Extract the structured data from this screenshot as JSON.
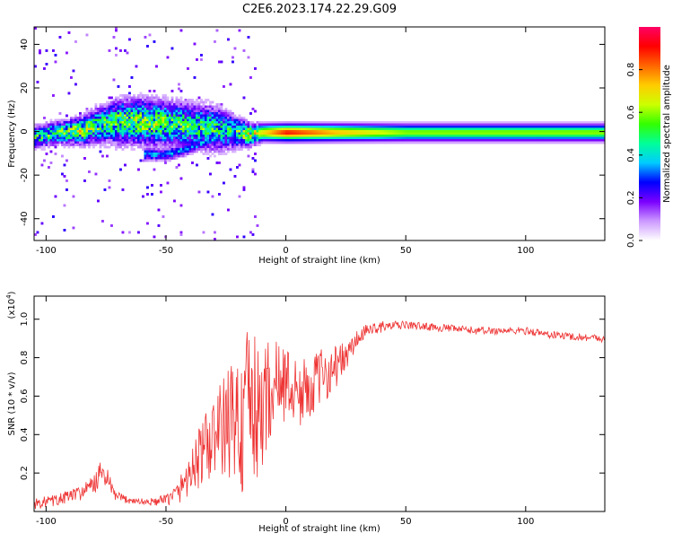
{
  "figure": {
    "title": "C2E6.2023.174.22.29.G09"
  },
  "chart_data": [
    {
      "type": "heatmap",
      "xlabel": "Height of straight line (km)",
      "ylabel": "Frequency (Hz)",
      "xlim": [
        -105,
        133
      ],
      "ylim": [
        -50,
        48
      ],
      "x_ticks": [
        -100,
        -50,
        0,
        50,
        100
      ],
      "x_tick_labels": [
        "-100",
        "-50",
        "0",
        "50",
        "100"
      ],
      "y_ticks": [
        -40,
        -20,
        0,
        20,
        40
      ],
      "y_tick_labels": [
        "-40",
        "-20",
        "0",
        "20",
        "40"
      ],
      "colorbar": {
        "label": "Normalized spectral amplitude",
        "range": [
          0,
          1
        ],
        "ticks": [
          0.0,
          0.2,
          0.4,
          0.6,
          0.8
        ],
        "tick_labels": [
          "0.0",
          "0.2",
          "0.4",
          "0.6",
          "0.8"
        ],
        "colormap": [
          "#ffffff",
          "#cc99ff",
          "#7a00ff",
          "#0000ff",
          "#00ccff",
          "#00ff99",
          "#33ff00",
          "#ccff00",
          "#ffcc00",
          "#ff6600",
          "#ff0000",
          "#ff0066"
        ]
      },
      "ridge": {
        "x": [
          -105,
          -95,
          -85,
          -80,
          -75,
          -70,
          -60,
          -50,
          -40,
          -30,
          -25,
          -20,
          -15,
          -10,
          0,
          20,
          50,
          100,
          133
        ],
        "center_hz": [
          -2,
          0,
          1,
          3,
          4,
          5,
          5,
          4,
          3,
          2,
          1,
          0,
          -1,
          0,
          0,
          0,
          0,
          0,
          0
        ],
        "half_width_hz": [
          4,
          4,
          5,
          6,
          7,
          8,
          8,
          8,
          8,
          8,
          7,
          5,
          4,
          3,
          3,
          3,
          3,
          3,
          3
        ],
        "amplitude": [
          0.45,
          0.5,
          0.55,
          0.5,
          0.45,
          0.5,
          0.55,
          0.5,
          0.45,
          0.45,
          0.4,
          0.5,
          0.6,
          0.7,
          0.9,
          0.75,
          0.6,
          0.6,
          0.6
        ]
      },
      "secondary_branch": {
        "x": [
          -60,
          -50,
          -40,
          -30,
          -25
        ],
        "center_hz": [
          -10,
          -10,
          -7,
          -2,
          5
        ],
        "amplitude": 0.35
      },
      "grid": false
    },
    {
      "type": "line",
      "xlabel": "Height of straight line (km)",
      "ylabel": "SNR (10 * v/v)",
      "y_multiplier_label": "(x10",
      "y_multiplier_exp": "4",
      "y_multiplier_close": ")",
      "xlim": [
        -105,
        133
      ],
      "ylim": [
        0,
        1.12
      ],
      "x_ticks": [
        -100,
        -50,
        0,
        50,
        100
      ],
      "x_tick_labels": [
        "-100",
        "-50",
        "0",
        "50",
        "100"
      ],
      "y_ticks": [
        0.2,
        0.4,
        0.6,
        0.8,
        1.0
      ],
      "y_tick_labels": [
        "0.2",
        "0.4",
        "0.6",
        "0.8",
        "1.0"
      ],
      "color": "#ee3333",
      "series": [
        {
          "x": [
            -105,
            -100,
            -95,
            -90,
            -85,
            -80,
            -77,
            -75,
            -72,
            -70,
            -65,
            -60,
            -55,
            -50,
            -45,
            -40,
            -35,
            -30,
            -25,
            -20,
            -18,
            -16,
            -14,
            -12,
            -10,
            -8,
            -5,
            0,
            5,
            10,
            15,
            20,
            25,
            30,
            35,
            40,
            50,
            60,
            70,
            80,
            90,
            100,
            110,
            120,
            133
          ],
          "y": [
            0.04,
            0.05,
            0.06,
            0.08,
            0.1,
            0.14,
            0.2,
            0.18,
            0.1,
            0.07,
            0.06,
            0.05,
            0.05,
            0.06,
            0.1,
            0.2,
            0.3,
            0.38,
            0.45,
            0.5,
            0.4,
            0.55,
            0.6,
            0.45,
            0.55,
            0.6,
            0.65,
            0.68,
            0.6,
            0.65,
            0.7,
            0.75,
            0.8,
            0.9,
            0.95,
            0.96,
            0.97,
            0.96,
            0.95,
            0.94,
            0.94,
            0.94,
            0.92,
            0.91,
            0.9
          ],
          "noise": [
            0.03,
            0.03,
            0.03,
            0.04,
            0.04,
            0.05,
            0.07,
            0.06,
            0.04,
            0.03,
            0.02,
            0.02,
            0.02,
            0.03,
            0.06,
            0.12,
            0.18,
            0.22,
            0.28,
            0.35,
            0.38,
            0.42,
            0.45,
            0.38,
            0.32,
            0.3,
            0.25,
            0.2,
            0.18,
            0.16,
            0.15,
            0.12,
            0.08,
            0.05,
            0.03,
            0.03,
            0.02,
            0.02,
            0.02,
            0.02,
            0.02,
            0.02,
            0.02,
            0.02,
            0.02
          ]
        }
      ],
      "grid": false
    }
  ]
}
